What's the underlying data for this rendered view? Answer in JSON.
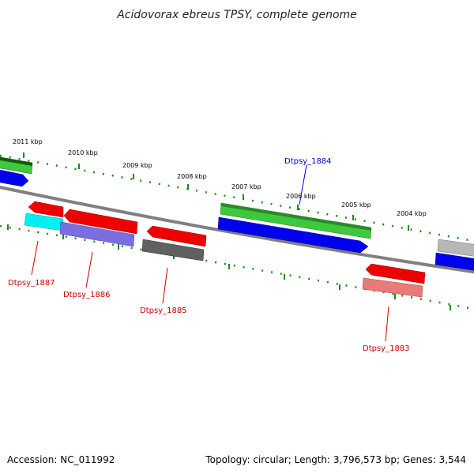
{
  "title": "Acidovorax ebreus TPSY, complete genome",
  "footer": {
    "accession": "Accession: NC_011992",
    "summary": "Topology: circular; Length: 3,796,573 bp; Genes: 3,544"
  },
  "kbp_labels": [
    "2011 kbp",
    "2010 kbp",
    "2009 kbp",
    "2008 kbp",
    "2007 kbp",
    "2006 kbp",
    "2005 kbp",
    "2004 kbp"
  ],
  "gene_labels": [
    "Dtpsy_1884",
    "Dtpsy_1887",
    "Dtpsy_1886",
    "Dtpsy_1885",
    "Dtpsy_1883"
  ],
  "colors": {
    "backbone": "#808080",
    "tick": "#1a8a1a",
    "green": "#3ec83e",
    "blue": "#0000ee",
    "red": "#ee0000",
    "cyan": "#00f0f0",
    "purple": "#7a6ee0",
    "dark_gray": "#606060",
    "pink": "#ea7a7a",
    "light_gray": "#b8b8b8",
    "label_blue": "#0000cc",
    "label_red": "#cc0000"
  }
}
